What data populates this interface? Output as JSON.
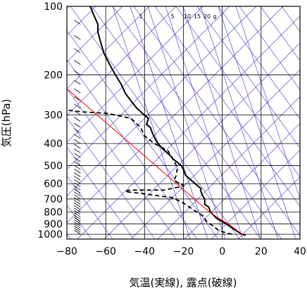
{
  "chart_data": {
    "type": "line",
    "xlabel": "気温(実線), 露点(破線)",
    "ylabel": "気圧(hPa)",
    "xlim": [
      -80,
      40
    ],
    "ylim": [
      1050,
      100
    ],
    "y_scale": "log",
    "x_ticks": [
      -80,
      -60,
      -40,
      -20,
      0,
      20,
      40
    ],
    "x_tick_labels": [
      "−80",
      "−60",
      "−40",
      "−20",
      "0",
      "20",
      "40"
    ],
    "y_ticks": [
      100,
      200,
      300,
      400,
      500,
      600,
      700,
      800,
      900,
      1000
    ],
    "y_tick_labels": [
      "100",
      "200",
      "300",
      "400",
      "500",
      "600",
      "700",
      "800",
      "900",
      "1000"
    ],
    "mixing_ratio_labels": [
      "1",
      "5",
      "10",
      "15",
      "20",
      "g"
    ],
    "grid": true,
    "colors": {
      "temperature": "#000000",
      "dewpoint": "#000000",
      "parcel": "#ff0000",
      "adiabats": "#3232c8",
      "grid": "#000000"
    },
    "series": [
      {
        "style": "solid",
        "points": [
          [
            12,
            1010
          ],
          [
            10,
            1000
          ],
          [
            6,
            950
          ],
          [
            2,
            900
          ],
          [
            -3,
            850
          ],
          [
            -6,
            800
          ],
          [
            -7,
            760
          ],
          [
            -9,
            740
          ],
          [
            -9,
            700
          ],
          [
            -10,
            680
          ],
          [
            -11,
            650
          ],
          [
            -11,
            630
          ],
          [
            -14,
            600
          ],
          [
            -17,
            570
          ],
          [
            -19,
            550
          ],
          [
            -20,
            520
          ],
          [
            -21,
            500
          ],
          [
            -25,
            470
          ],
          [
            -27,
            450
          ],
          [
            -31,
            420
          ],
          [
            -34,
            390
          ],
          [
            -36,
            360
          ],
          [
            -37,
            340
          ],
          [
            -39,
            330
          ],
          [
            -38,
            310
          ],
          [
            -40,
            300
          ],
          [
            -44,
            280
          ],
          [
            -47,
            260
          ],
          [
            -50,
            240
          ],
          [
            -52,
            220
          ],
          [
            -55,
            200
          ],
          [
            -58,
            180
          ],
          [
            -61,
            160
          ],
          [
            -63,
            140
          ],
          [
            -64,
            130
          ],
          [
            -64,
            120
          ],
          [
            -66,
            110
          ],
          [
            -68,
            100
          ]
        ]
      },
      {
        "style": "dashed",
        "points": [
          [
            5,
            1000
          ],
          [
            1,
            980
          ],
          [
            -2,
            960
          ],
          [
            -4,
            930
          ],
          [
            -8,
            880
          ],
          [
            -10,
            830
          ],
          [
            -15,
            780
          ],
          [
            -20,
            730
          ],
          [
            -26,
            690
          ],
          [
            -40,
            665
          ],
          [
            -50,
            650
          ],
          [
            -48,
            640
          ],
          [
            -30,
            640
          ],
          [
            -22,
            620
          ],
          [
            -20,
            610
          ],
          [
            -25,
            580
          ],
          [
            -24,
            560
          ],
          [
            -23,
            510
          ],
          [
            -26,
            460
          ],
          [
            -28,
            430
          ],
          [
            -35,
            400
          ],
          [
            -40,
            370
          ],
          [
            -42,
            340
          ],
          [
            -47,
            310
          ],
          [
            -59,
            295
          ],
          [
            -73,
            290
          ],
          [
            -80,
            285
          ]
        ]
      },
      {
        "style": "parcel",
        "points": [
          [
            11,
            1010
          ],
          [
            3,
            900
          ],
          [
            -2,
            850
          ],
          [
            -8,
            780
          ],
          [
            -80,
            230
          ]
        ]
      }
    ],
    "wind_barbs": "left column, 100–1000 hPa"
  }
}
